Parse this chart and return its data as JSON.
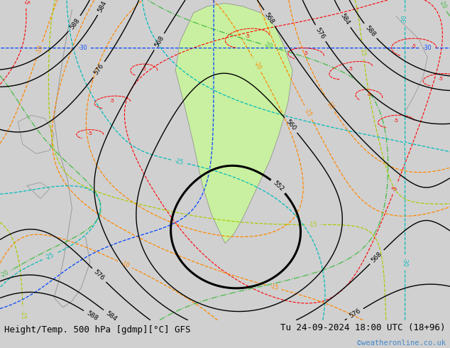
{
  "title_left": "Height/Temp. 500 hPa [gdmp][°C] GFS",
  "title_right": "Tu 24-09-2024 18:00 UTC (18+96)",
  "watermark": "©weatheronline.co.uk",
  "bg_color": "#d0d0d0",
  "map_bg": "#dcdcdc",
  "green_fill": "#c8f0a0",
  "bottom_bar_color": "#c8c8c8",
  "title_font_size": 9,
  "watermark_color": "#4488cc"
}
